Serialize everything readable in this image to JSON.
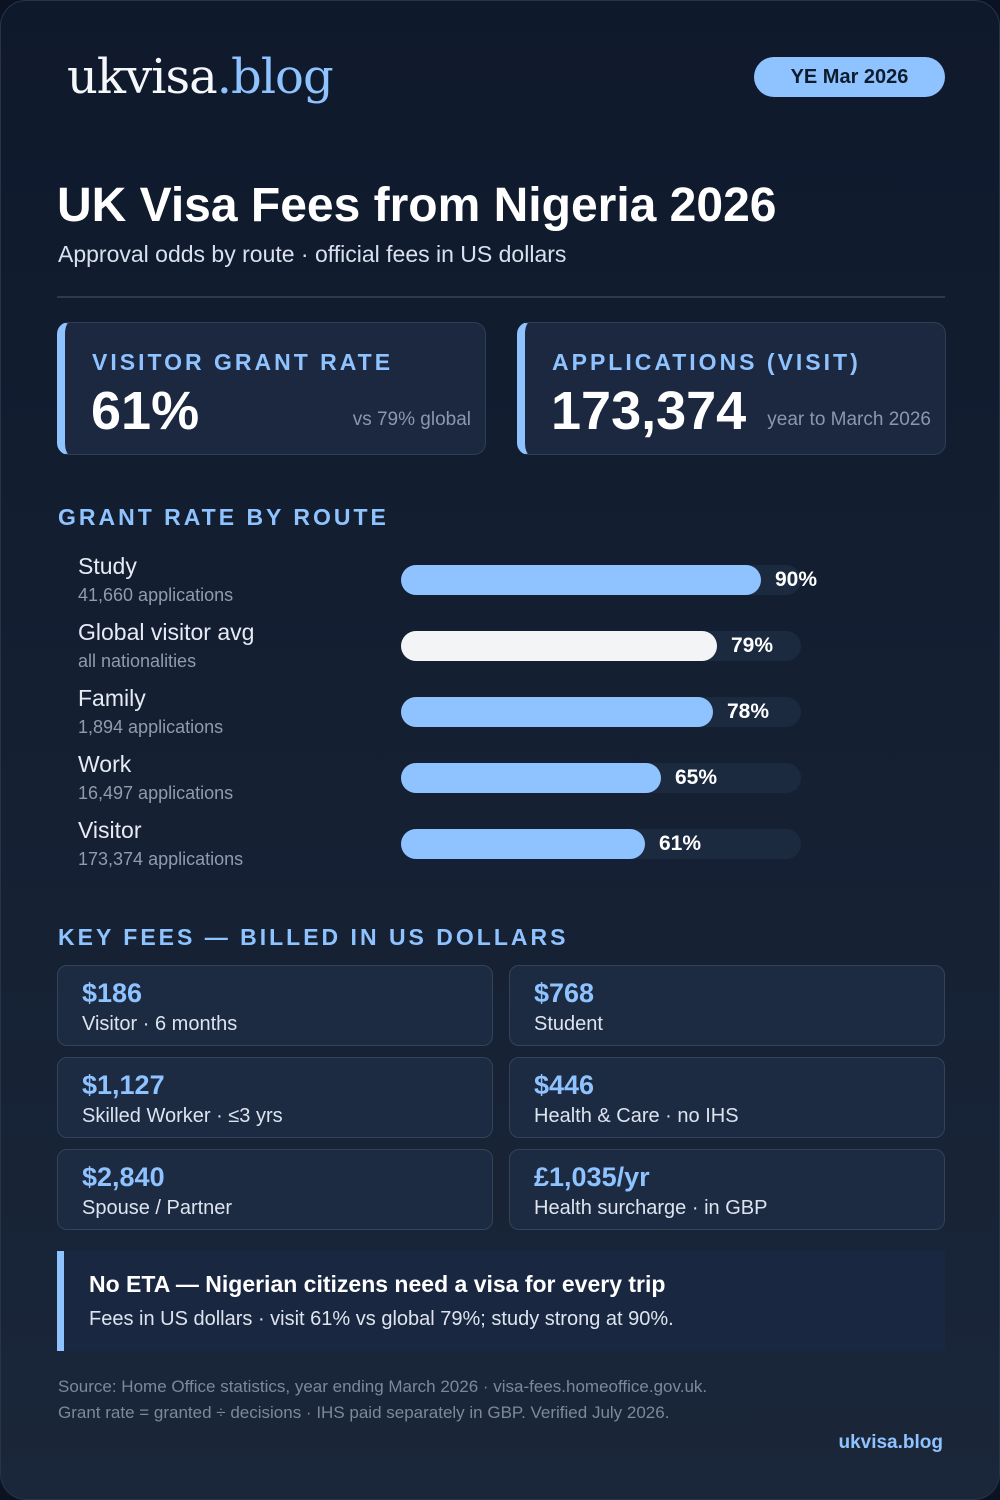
{
  "brand": {
    "name_part1": "ukvisa",
    "name_part2": ".blog"
  },
  "period_badge": "YE Mar 2026",
  "header": {
    "title": "UK Visa Fees from Nigeria 2026",
    "subtitle": "Approval odds by route · official fees in US dollars"
  },
  "stats": [
    {
      "label": "VISITOR GRANT RATE",
      "value": "61%",
      "note": "vs 79% global"
    },
    {
      "label": "APPLICATIONS (VISIT)",
      "value": "173,374",
      "note": "year to March 2026"
    }
  ],
  "grant_section": {
    "heading": "GRANT RATE BY ROUTE"
  },
  "routes": [
    {
      "name": "Study",
      "sub": "41,660 applications",
      "pct": 90,
      "pct_label": "90%",
      "highlight": false
    },
    {
      "name": "Global visitor avg",
      "sub": "all nationalities",
      "pct": 79,
      "pct_label": "79%",
      "highlight": true
    },
    {
      "name": "Family",
      "sub": "1,894 applications",
      "pct": 78,
      "pct_label": "78%",
      "highlight": false
    },
    {
      "name": "Work",
      "sub": "16,497 applications",
      "pct": 65,
      "pct_label": "65%",
      "highlight": false
    },
    {
      "name": "Visitor",
      "sub": "173,374 applications",
      "pct": 61,
      "pct_label": "61%",
      "highlight": false
    }
  ],
  "fees_section": {
    "heading": "KEY FEES — BILLED IN US DOLLARS"
  },
  "fees": [
    {
      "amount": "$186",
      "desc": "Visitor · 6 months"
    },
    {
      "amount": "$768",
      "desc": "Student"
    },
    {
      "amount": "$1,127",
      "desc": "Skilled Worker · ≤3 yrs"
    },
    {
      "amount": "$446",
      "desc": "Health & Care · no IHS"
    },
    {
      "amount": "$2,840",
      "desc": "Spouse / Partner"
    },
    {
      "amount": "£1,035/yr",
      "desc": "Health surcharge · in GBP"
    }
  ],
  "callout": {
    "heading": "No ETA — Nigerian citizens need a visa for every trip",
    "body": "Fees in US dollars · visit 61% vs global 79%; study strong at 90%."
  },
  "source": {
    "line1": "Source: Home Office statistics, year ending March 2026 · visa-fees.homeoffice.gov.uk.",
    "line2": "Grant rate = granted ÷ decisions · IHS paid separately in GBP. Verified July 2026."
  },
  "footer_brand": "ukvisa.blog",
  "colors": {
    "accent": "#8fc3ff",
    "background": "#0f192c",
    "reference_bar": "#f3f4f6"
  }
}
